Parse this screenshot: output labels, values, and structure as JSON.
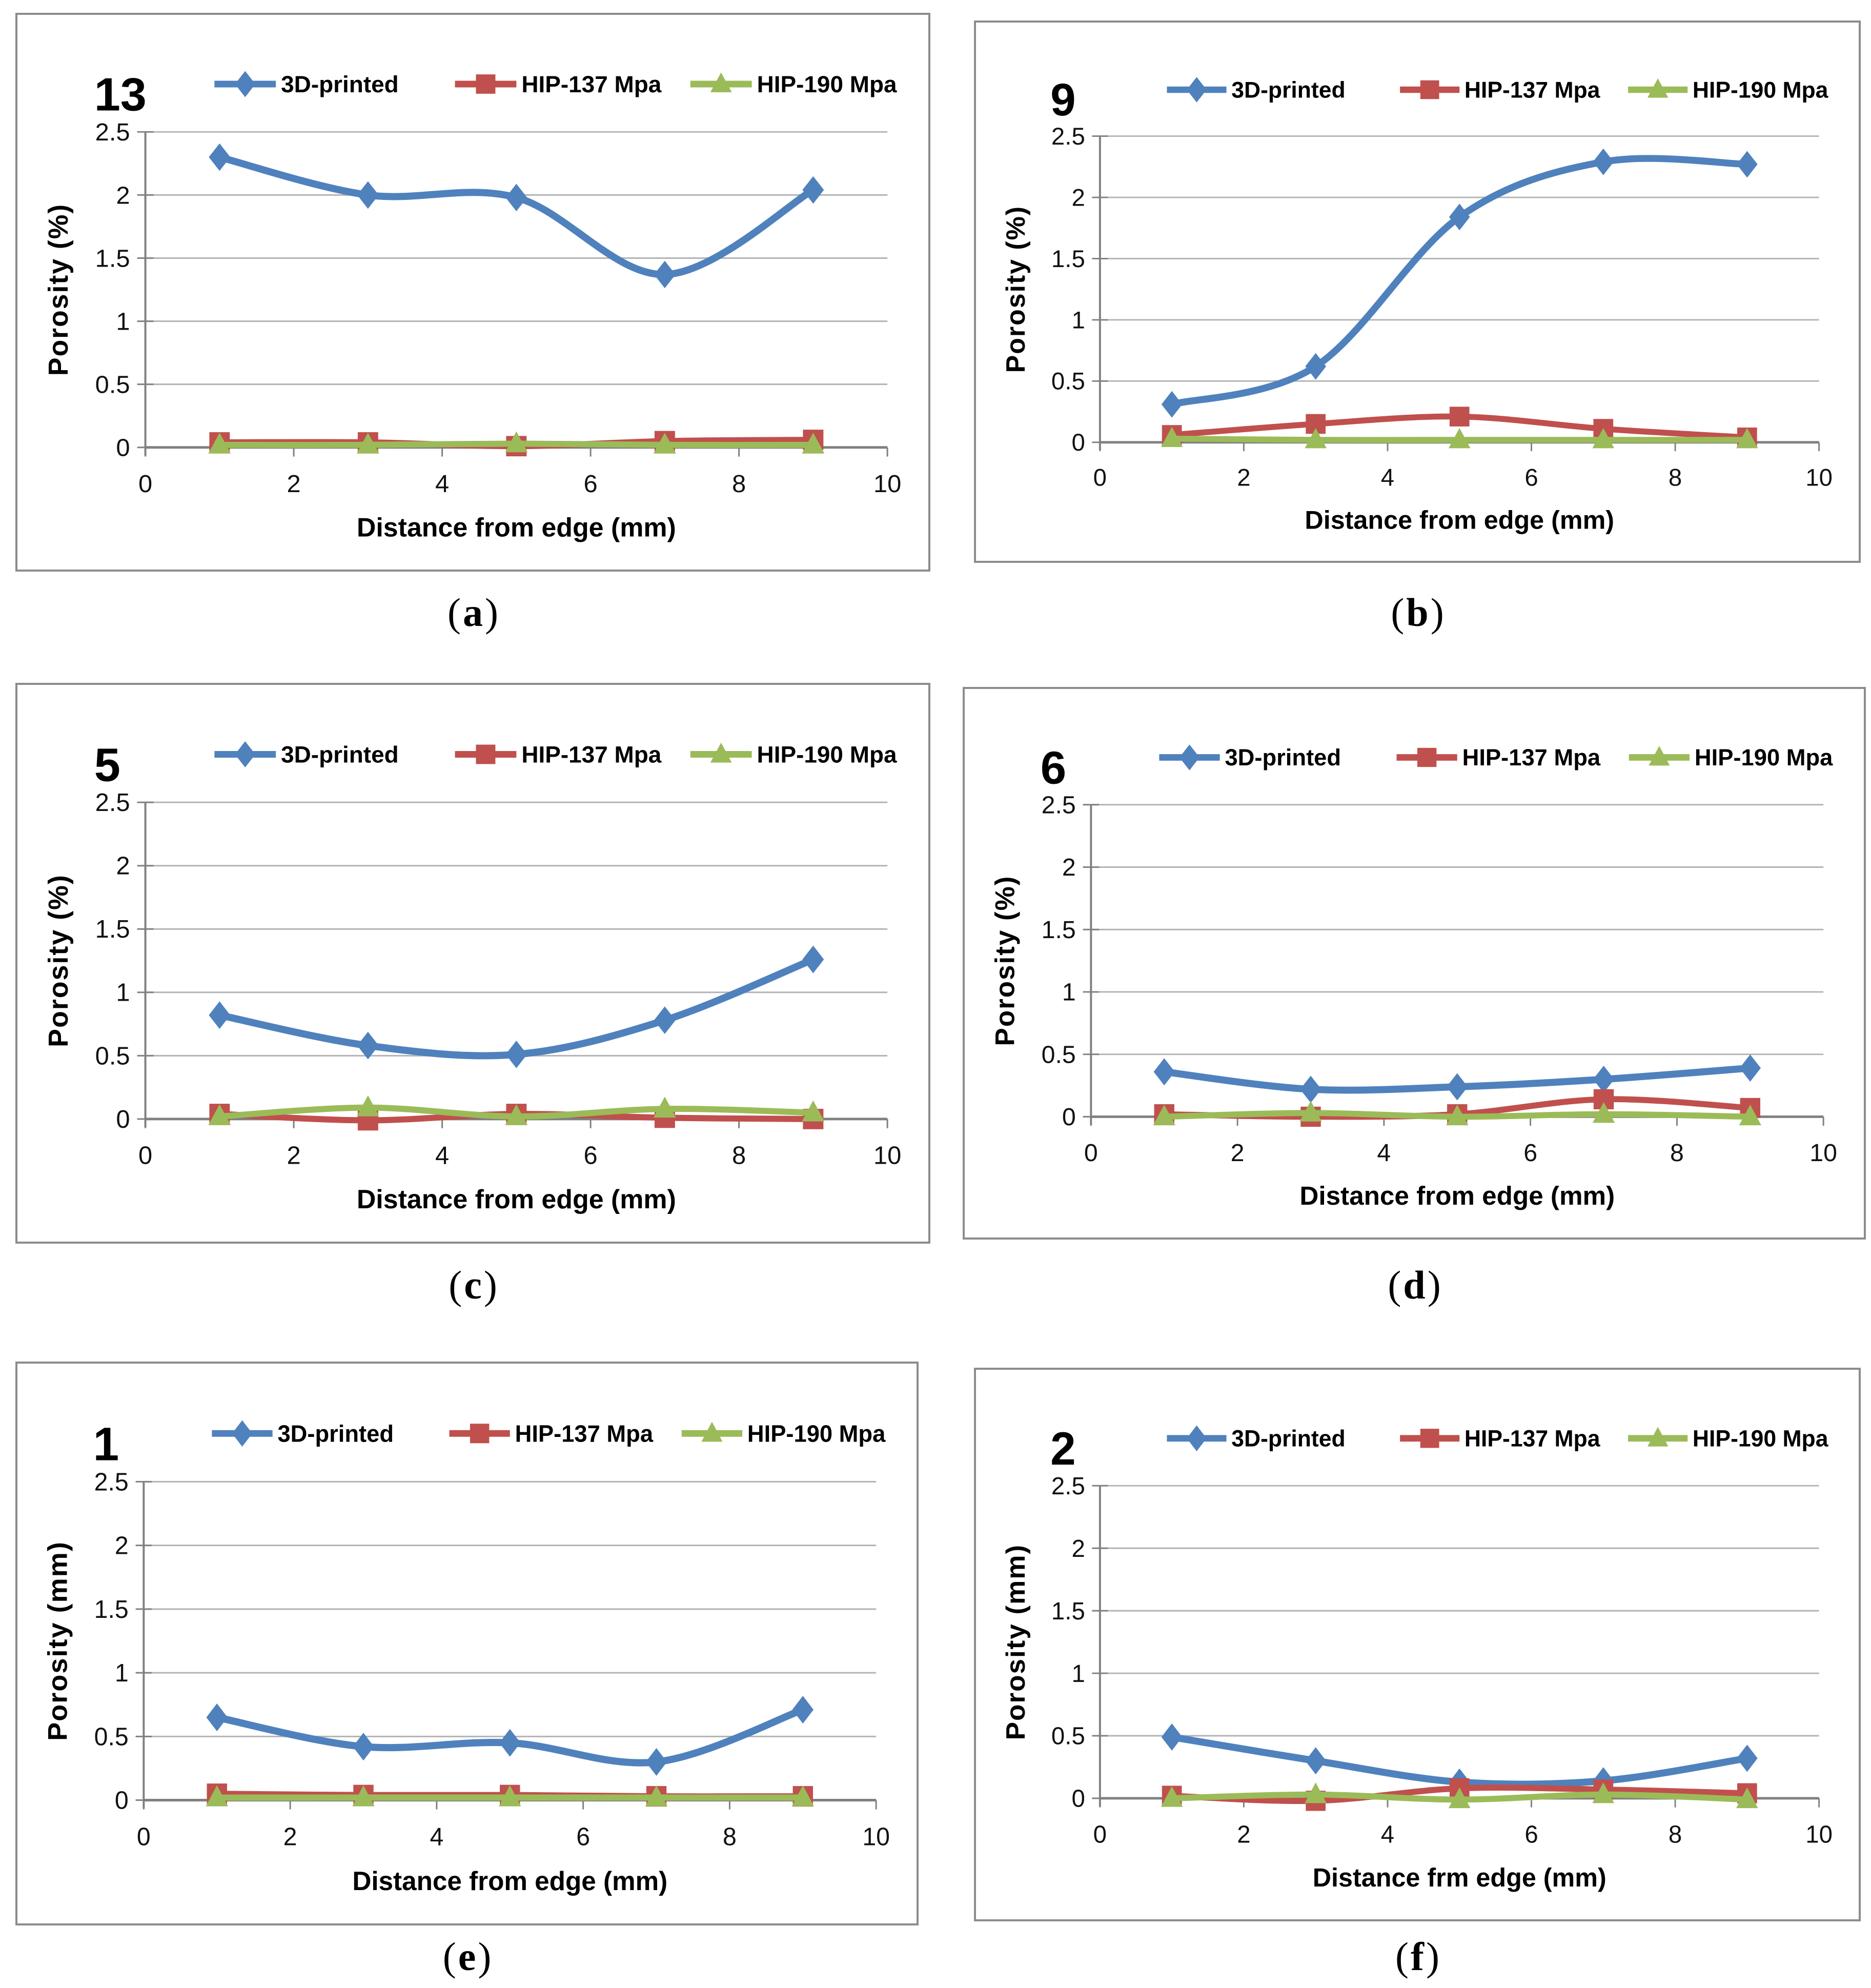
{
  "figure": {
    "background": "#ffffff",
    "panel_border_color": "#8c8c8c",
    "grid_color": "#b3b3b3",
    "axis_color": "#808080",
    "tick_label_color": "#111111",
    "series_colors": {
      "printed_3d": "#4F81BD",
      "hip_137": "#C0504D",
      "hip_190": "#9BBB59"
    },
    "legend_labels": [
      "3D-printed",
      "HIP-137 Mpa",
      "HIP-190 Mpa"
    ],
    "captions": [
      {
        "pre": "(",
        "letter": "a",
        "post": ")"
      },
      {
        "pre": "(",
        "letter": "b",
        "post": ")"
      },
      {
        "pre": "(",
        "letter": "c",
        "post": ")"
      },
      {
        "pre": "(",
        "letter": "d",
        "post": ")"
      },
      {
        "pre": "(",
        "letter": "e",
        "post": ")"
      },
      {
        "pre": "(",
        "letter": "f",
        "post": ")"
      }
    ]
  },
  "chart_data": [
    {
      "type": "line",
      "panel_number": "13",
      "caption": "(a)",
      "x": [
        1,
        3,
        5,
        7,
        9
      ],
      "series": [
        {
          "name": "3D-printed",
          "marker": "diamond",
          "color": "#4F81BD",
          "values": [
            2.3,
            2.0,
            1.98,
            1.37,
            2.04
          ]
        },
        {
          "name": "HIP-137 Mpa",
          "marker": "square",
          "color": "#C0504D",
          "values": [
            0.04,
            0.04,
            0.01,
            0.05,
            0.06
          ]
        },
        {
          "name": "HIP-190 Mpa",
          "marker": "triangle",
          "color": "#9BBB59",
          "values": [
            0.02,
            0.02,
            0.03,
            0.02,
            0.02
          ]
        }
      ],
      "xlabel": "Distance from  edge (mm)",
      "ylabel": "Porosity  (%)",
      "xlim": [
        0,
        10
      ],
      "ylim": [
        0,
        2.5
      ],
      "xticks": [
        0,
        2,
        4,
        6,
        8,
        10
      ],
      "yticks": [
        0,
        0.5,
        1,
        1.5,
        2,
        2.5
      ],
      "xticklabels": [
        "0",
        "2",
        "4",
        "6",
        "8",
        "10"
      ],
      "yticklabels": [
        "0",
        "0.5",
        "1",
        "1.5",
        "2",
        "2.5"
      ],
      "grid": true,
      "legend_position": "top",
      "smooth": true
    },
    {
      "type": "line",
      "panel_number": "9",
      "caption": "(b)",
      "x": [
        1,
        3,
        5,
        7,
        9
      ],
      "series": [
        {
          "name": "3D-printed",
          "marker": "diamond",
          "color": "#4F81BD",
          "values": [
            0.31,
            0.62,
            1.84,
            2.29,
            2.27
          ]
        },
        {
          "name": "HIP-137 Mpa",
          "marker": "square",
          "color": "#C0504D",
          "values": [
            0.06,
            0.15,
            0.21,
            0.11,
            0.04
          ]
        },
        {
          "name": "HIP-190 Mpa",
          "marker": "triangle",
          "color": "#9BBB59",
          "values": [
            0.03,
            0.02,
            0.02,
            0.02,
            0.02
          ]
        }
      ],
      "xlabel": "Distance from  edge (mm)",
      "ylabel": "Porosity  (%)",
      "xlim": [
        0,
        10
      ],
      "ylim": [
        0,
        2.5
      ],
      "xticks": [
        0,
        2,
        4,
        6,
        8,
        10
      ],
      "yticks": [
        0,
        0.5,
        1,
        1.5,
        2,
        2.5
      ],
      "xticklabels": [
        "0",
        "2",
        "4",
        "6",
        "8",
        "10"
      ],
      "yticklabels": [
        "0",
        "0.5",
        "1",
        "1.5",
        "2",
        "2.5"
      ],
      "grid": true,
      "legend_position": "top",
      "smooth": true
    },
    {
      "type": "line",
      "panel_number": "5",
      "caption": "(c)",
      "x": [
        1,
        3,
        5,
        7,
        9
      ],
      "series": [
        {
          "name": "3D-printed",
          "marker": "diamond",
          "color": "#4F81BD",
          "values": [
            0.82,
            0.58,
            0.51,
            0.78,
            1.26
          ]
        },
        {
          "name": "HIP-137 Mpa",
          "marker": "square",
          "color": "#C0504D",
          "values": [
            0.04,
            -0.01,
            0.04,
            0.01,
            0.0
          ]
        },
        {
          "name": "HIP-190 Mpa",
          "marker": "triangle",
          "color": "#9BBB59",
          "values": [
            0.02,
            0.09,
            0.02,
            0.08,
            0.05
          ]
        }
      ],
      "xlabel": "Distance from  edge (mm)",
      "ylabel": "Porosity  (%)",
      "xlim": [
        0,
        10
      ],
      "ylim": [
        0,
        2.5
      ],
      "xticks": [
        0,
        2,
        4,
        6,
        8,
        10
      ],
      "yticks": [
        0,
        0.5,
        1,
        1.5,
        2,
        2.5
      ],
      "xticklabels": [
        "0",
        "2",
        "4",
        "6",
        "8",
        "10"
      ],
      "yticklabels": [
        "0",
        "0.5",
        "1",
        "1.5",
        "2",
        "2.5"
      ],
      "grid": true,
      "legend_position": "top",
      "smooth": true
    },
    {
      "type": "line",
      "panel_number": "6",
      "caption": "(d)",
      "x": [
        1,
        3,
        5,
        7,
        9
      ],
      "series": [
        {
          "name": "3D-printed",
          "marker": "diamond",
          "color": "#4F81BD",
          "values": [
            0.36,
            0.22,
            0.24,
            0.3,
            0.39
          ]
        },
        {
          "name": "HIP-137 Mpa",
          "marker": "square",
          "color": "#C0504D",
          "values": [
            0.02,
            0.0,
            0.02,
            0.14,
            0.07
          ]
        },
        {
          "name": "HIP-190 Mpa",
          "marker": "triangle",
          "color": "#9BBB59",
          "values": [
            0.0,
            0.03,
            0.0,
            0.02,
            0.0
          ]
        }
      ],
      "xlabel": "Distance from edge (mm)",
      "ylabel": "Porosity  (%)",
      "xlim": [
        0,
        10
      ],
      "ylim": [
        0,
        2.5
      ],
      "xticks": [
        0,
        2,
        4,
        6,
        8,
        10
      ],
      "yticks": [
        0,
        0.5,
        1,
        1.5,
        2,
        2.5
      ],
      "xticklabels": [
        "0",
        "2",
        "4",
        "6",
        "8",
        "10"
      ],
      "yticklabels": [
        "0",
        "0.5",
        "1",
        "1.5",
        "2",
        "2.5"
      ],
      "grid": true,
      "legend_position": "top",
      "smooth": true
    },
    {
      "type": "line",
      "panel_number": "1",
      "caption": "(e)",
      "x": [
        1,
        3,
        5,
        7,
        9
      ],
      "series": [
        {
          "name": "3D-printed",
          "marker": "diamond",
          "color": "#4F81BD",
          "values": [
            0.65,
            0.42,
            0.45,
            0.3,
            0.71
          ]
        },
        {
          "name": "HIP-137 Mpa",
          "marker": "square",
          "color": "#C0504D",
          "values": [
            0.05,
            0.04,
            0.04,
            0.03,
            0.03
          ]
        },
        {
          "name": "HIP-190 Mpa",
          "marker": "triangle",
          "color": "#9BBB59",
          "values": [
            0.02,
            0.02,
            0.02,
            0.02,
            0.02
          ]
        }
      ],
      "xlabel": "Distance from edge (mm)",
      "ylabel": "Porosity  (mm)",
      "xlim": [
        0,
        10
      ],
      "ylim": [
        0,
        2.5
      ],
      "xticks": [
        0,
        2,
        4,
        6,
        8,
        10
      ],
      "yticks": [
        0,
        0.5,
        1,
        1.5,
        2,
        2.5
      ],
      "xticklabels": [
        "0",
        "2",
        "4",
        "6",
        "8",
        "10"
      ],
      "yticklabels": [
        "0",
        "0.5",
        "1",
        "1.5",
        "2",
        "2.5"
      ],
      "grid": true,
      "legend_position": "top",
      "smooth": true
    },
    {
      "type": "line",
      "panel_number": "2",
      "caption": "(f)",
      "x": [
        1,
        3,
        5,
        7,
        9
      ],
      "series": [
        {
          "name": "3D-printed",
          "marker": "diamond",
          "color": "#4F81BD",
          "values": [
            0.49,
            0.3,
            0.13,
            0.14,
            0.32
          ]
        },
        {
          "name": "HIP-137 Mpa",
          "marker": "square",
          "color": "#C0504D",
          "values": [
            0.02,
            -0.02,
            0.08,
            0.07,
            0.04
          ]
        },
        {
          "name": "HIP-190 Mpa",
          "marker": "triangle",
          "color": "#9BBB59",
          "values": [
            0.0,
            0.03,
            -0.01,
            0.03,
            -0.01
          ]
        }
      ],
      "xlabel": "Distance frm edge (mm)",
      "ylabel": "Porosity  (mm)",
      "xlim": [
        0,
        10
      ],
      "ylim": [
        0,
        2.5
      ],
      "xticks": [
        0,
        2,
        4,
        6,
        8,
        10
      ],
      "yticks": [
        0,
        0.5,
        1,
        1.5,
        2,
        2.5
      ],
      "xticklabels": [
        "0",
        "2",
        "4",
        "6",
        "8",
        "10"
      ],
      "yticklabels": [
        "0",
        "0.5",
        "1",
        "1.5",
        "2",
        "2.5"
      ],
      "grid": true,
      "legend_position": "top",
      "smooth": true
    }
  ]
}
